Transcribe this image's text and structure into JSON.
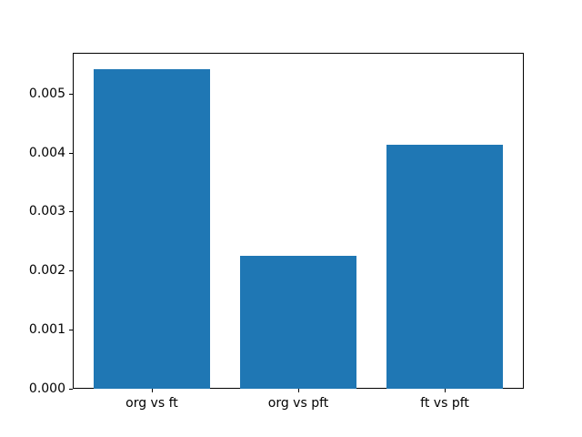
{
  "chart_data": {
    "type": "bar",
    "title": "",
    "xlabel": "",
    "ylabel": "",
    "categories": [
      "org vs ft",
      "org vs pft",
      "ft vs pft"
    ],
    "values": [
      0.00542,
      0.00225,
      0.00413
    ],
    "ylim": [
      0,
      0.005691
    ],
    "yticks": [
      "0.000",
      "0.001",
      "0.002",
      "0.003",
      "0.004",
      "0.005"
    ],
    "ytick_values": [
      0,
      0.001,
      0.002,
      0.003,
      0.004,
      0.005
    ],
    "bar_width_fraction": 0.8,
    "grid": false,
    "legend": null,
    "colors": {
      "bar": "#1f77b4",
      "axis": "#000000",
      "text": "#000000",
      "background": "#ffffff"
    }
  }
}
